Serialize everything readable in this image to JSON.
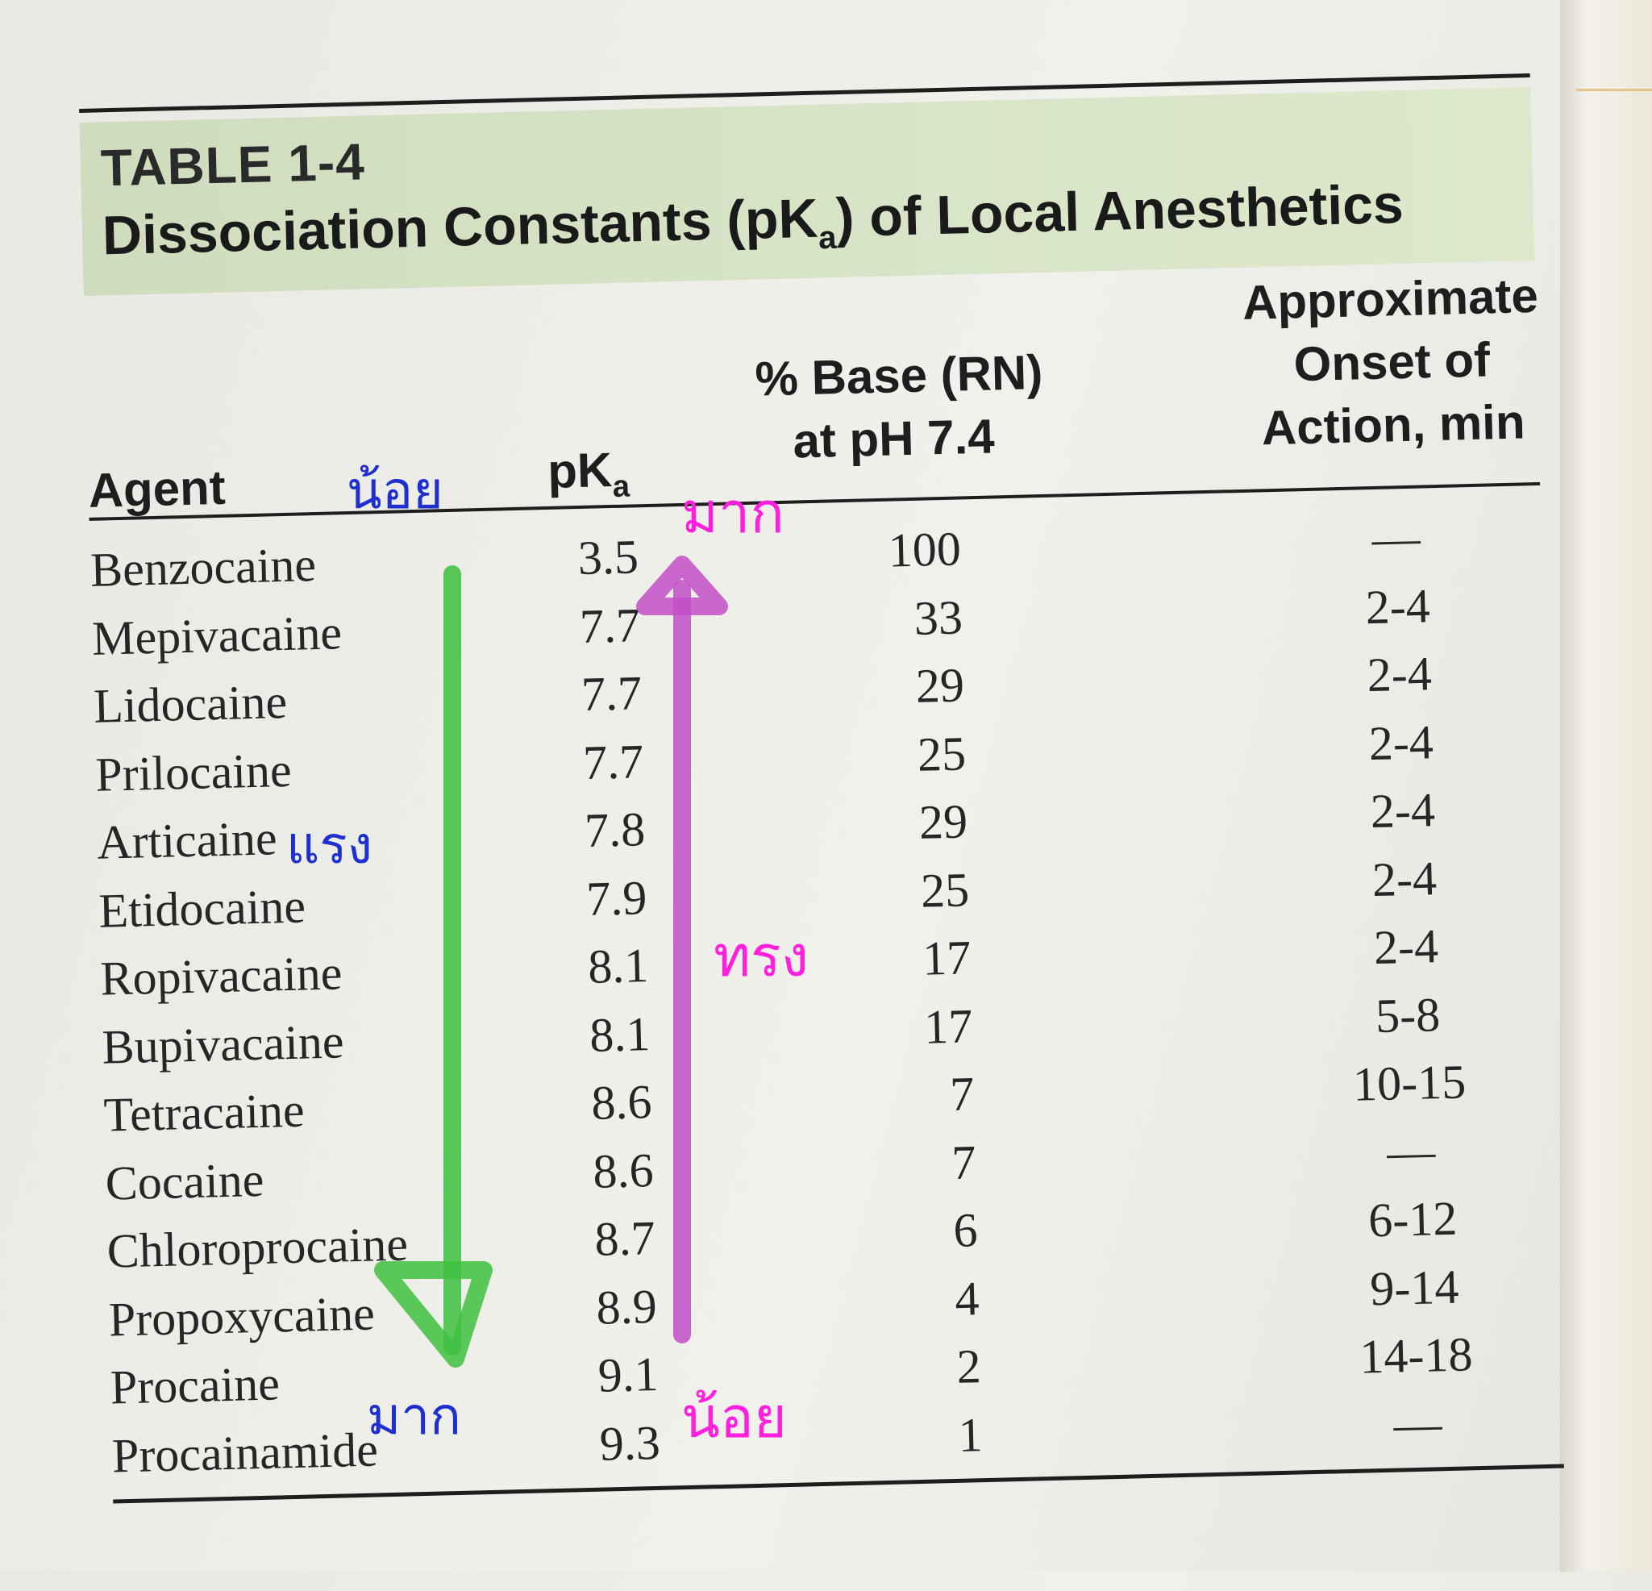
{
  "table": {
    "label": "TABLE 1-4",
    "title_pre": "Dissociation Constants (pK",
    "title_sub": "a",
    "title_post": ") of Local Anesthetics"
  },
  "columns": {
    "agent": "Agent",
    "pka_main": "pK",
    "pka_sub": "a",
    "base_line1": "% Base (RN)",
    "base_line2": "at pH 7.4",
    "onset_line1": "Approximate",
    "onset_line2": "Onset of",
    "onset_line3": "Action, min"
  },
  "rows": [
    {
      "agent": "Benzocaine",
      "pka": "3.5",
      "base": "100",
      "onset": "—"
    },
    {
      "agent": "Mepivacaine",
      "pka": "7.7",
      "base": "33",
      "onset": "2-4"
    },
    {
      "agent": "Lidocaine",
      "pka": "7.7",
      "base": "29",
      "onset": "2-4"
    },
    {
      "agent": "Prilocaine",
      "pka": "7.7",
      "base": "25",
      "onset": "2-4"
    },
    {
      "agent": "Articaine",
      "pka": "7.8",
      "base": "29",
      "onset": "2-4"
    },
    {
      "agent": "Etidocaine",
      "pka": "7.9",
      "base": "25",
      "onset": "2-4"
    },
    {
      "agent": "Ropivacaine",
      "pka": "8.1",
      "base": "17",
      "onset": "2-4"
    },
    {
      "agent": "Bupivacaine",
      "pka": "8.1",
      "base": "17",
      "onset": "5-8"
    },
    {
      "agent": "Tetracaine",
      "pka": "8.6",
      "base": "7",
      "onset": "10-15"
    },
    {
      "agent": "Cocaine",
      "pka": "8.6",
      "base": "7",
      "onset": "—"
    },
    {
      "agent": "Chloroprocaine",
      "pka": "8.7",
      "base": "6",
      "onset": "6-12"
    },
    {
      "agent": "Propoxycaine",
      "pka": "8.9",
      "base": "4",
      "onset": "9-14"
    },
    {
      "agent": "Procaine",
      "pka": "9.1",
      "base": "2",
      "onset": "14-18"
    },
    {
      "agent": "Procainamide",
      "pka": "9.3",
      "base": "1",
      "onset": "—"
    }
  ],
  "annotations": {
    "blue_top": "น้อย",
    "blue_mid": "แรง",
    "blue_bottom": "มาก",
    "pink_top": "มาก",
    "pink_mid": "ทรง",
    "pink_bottom": "น้อย",
    "blue_color": "#1f2fd0",
    "green_color": "#3fbf3f",
    "pink_color": "#ff1fdc",
    "purple_color": "#c24fc8"
  }
}
